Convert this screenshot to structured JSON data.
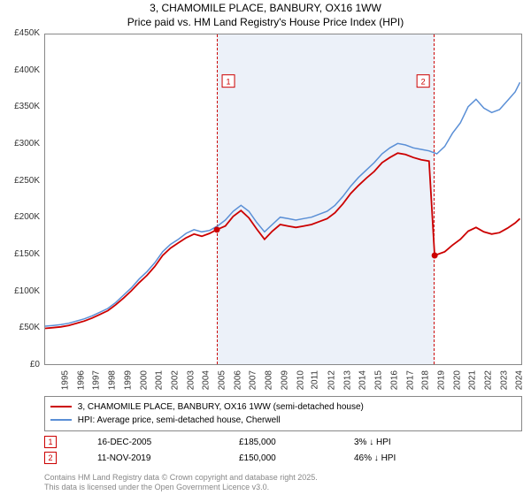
{
  "title_line1": "3, CHAMOMILE PLACE, BANBURY, OX16 1WW",
  "title_line2": "Price paid vs. HM Land Registry's House Price Index (HPI)",
  "chart": {
    "type": "line",
    "background_color": "#ffffff",
    "border_color": "#888888",
    "ylim": [
      0,
      450000
    ],
    "ytick_step": 50000,
    "yticks": [
      "£0",
      "£50K",
      "£100K",
      "£150K",
      "£200K",
      "£250K",
      "£300K",
      "£350K",
      "£400K",
      "£450K"
    ],
    "xlim": [
      1995,
      2025.5
    ],
    "xticks": [
      "1995",
      "1996",
      "1997",
      "1998",
      "1999",
      "2000",
      "2001",
      "2002",
      "2003",
      "2004",
      "2005",
      "2006",
      "2007",
      "2008",
      "2009",
      "2010",
      "2011",
      "2012",
      "2013",
      "2014",
      "2015",
      "2016",
      "2017",
      "2018",
      "2019",
      "2020",
      "2021",
      "2022",
      "2023",
      "2024",
      "2025"
    ],
    "shade_start": 2005.96,
    "shade_end": 2019.86,
    "shade_color": "rgba(180,200,230,0.25)",
    "shade_border": "#cc0000",
    "series": [
      {
        "name": "HPI: Average price, semi-detached house, Cherwell",
        "color": "#5a8fd6",
        "line_width": 1.5,
        "points": [
          [
            1995,
            54000
          ],
          [
            1995.5,
            55000
          ],
          [
            1996,
            56000
          ],
          [
            1996.5,
            58000
          ],
          [
            1997,
            61000
          ],
          [
            1997.5,
            64000
          ],
          [
            1998,
            68000
          ],
          [
            1998.5,
            73000
          ],
          [
            1999,
            78000
          ],
          [
            1999.5,
            86000
          ],
          [
            2000,
            96000
          ],
          [
            2000.5,
            106000
          ],
          [
            2001,
            118000
          ],
          [
            2001.5,
            128000
          ],
          [
            2002,
            140000
          ],
          [
            2002.5,
            155000
          ],
          [
            2003,
            165000
          ],
          [
            2003.5,
            172000
          ],
          [
            2004,
            180000
          ],
          [
            2004.5,
            185000
          ],
          [
            2005,
            182000
          ],
          [
            2005.5,
            184000
          ],
          [
            2006,
            190000
          ],
          [
            2006.5,
            198000
          ],
          [
            2007,
            210000
          ],
          [
            2007.5,
            218000
          ],
          [
            2008,
            210000
          ],
          [
            2008.5,
            195000
          ],
          [
            2009,
            182000
          ],
          [
            2009.5,
            192000
          ],
          [
            2010,
            202000
          ],
          [
            2010.5,
            200000
          ],
          [
            2011,
            198000
          ],
          [
            2011.5,
            200000
          ],
          [
            2012,
            202000
          ],
          [
            2012.5,
            206000
          ],
          [
            2013,
            210000
          ],
          [
            2013.5,
            218000
          ],
          [
            2014,
            230000
          ],
          [
            2014.5,
            244000
          ],
          [
            2015,
            256000
          ],
          [
            2015.5,
            266000
          ],
          [
            2016,
            276000
          ],
          [
            2016.5,
            288000
          ],
          [
            2017,
            296000
          ],
          [
            2017.5,
            302000
          ],
          [
            2018,
            300000
          ],
          [
            2018.5,
            296000
          ],
          [
            2019,
            294000
          ],
          [
            2019.5,
            292000
          ],
          [
            2020,
            288000
          ],
          [
            2020.5,
            298000
          ],
          [
            2021,
            316000
          ],
          [
            2021.5,
            330000
          ],
          [
            2022,
            352000
          ],
          [
            2022.5,
            362000
          ],
          [
            2023,
            350000
          ],
          [
            2023.5,
            344000
          ],
          [
            2024,
            348000
          ],
          [
            2024.5,
            360000
          ],
          [
            2025,
            372000
          ],
          [
            2025.3,
            385000
          ]
        ]
      },
      {
        "name": "3, CHAMOMILE PLACE, BANBURY, OX16 1WW (semi-detached house)",
        "color": "#cc0000",
        "line_width": 1.8,
        "points": [
          [
            1995,
            51000
          ],
          [
            1995.5,
            52000
          ],
          [
            1996,
            53000
          ],
          [
            1996.5,
            55000
          ],
          [
            1997,
            58000
          ],
          [
            1997.5,
            61000
          ],
          [
            1998,
            65000
          ],
          [
            1998.5,
            70000
          ],
          [
            1999,
            75000
          ],
          [
            1999.5,
            83000
          ],
          [
            2000,
            92000
          ],
          [
            2000.5,
            102000
          ],
          [
            2001,
            113000
          ],
          [
            2001.5,
            123000
          ],
          [
            2002,
            135000
          ],
          [
            2002.5,
            150000
          ],
          [
            2003,
            160000
          ],
          [
            2003.5,
            167000
          ],
          [
            2004,
            174000
          ],
          [
            2004.5,
            179000
          ],
          [
            2005,
            176000
          ],
          [
            2005.5,
            180000
          ],
          [
            2005.96,
            185000
          ],
          [
            2006.5,
            190000
          ],
          [
            2007,
            203000
          ],
          [
            2007.5,
            211000
          ],
          [
            2008,
            201000
          ],
          [
            2008.5,
            186000
          ],
          [
            2009,
            172000
          ],
          [
            2009.5,
            183000
          ],
          [
            2010,
            192000
          ],
          [
            2010.5,
            190000
          ],
          [
            2011,
            188000
          ],
          [
            2011.5,
            190000
          ],
          [
            2012,
            192000
          ],
          [
            2012.5,
            196000
          ],
          [
            2013,
            200000
          ],
          [
            2013.5,
            208000
          ],
          [
            2014,
            220000
          ],
          [
            2014.5,
            234000
          ],
          [
            2015,
            245000
          ],
          [
            2015.5,
            255000
          ],
          [
            2016,
            264000
          ],
          [
            2016.5,
            276000
          ],
          [
            2017,
            283000
          ],
          [
            2017.5,
            289000
          ],
          [
            2018,
            287000
          ],
          [
            2018.5,
            283000
          ],
          [
            2019,
            280000
          ],
          [
            2019.5,
            278000
          ],
          [
            2019.86,
            150000
          ],
          [
            2020.5,
            155000
          ],
          [
            2021,
            164000
          ],
          [
            2021.5,
            172000
          ],
          [
            2022,
            183000
          ],
          [
            2022.5,
            188000
          ],
          [
            2023,
            182000
          ],
          [
            2023.5,
            179000
          ],
          [
            2024,
            181000
          ],
          [
            2024.5,
            187000
          ],
          [
            2025,
            194000
          ],
          [
            2025.3,
            200000
          ]
        ],
        "markers": [
          {
            "x": 2005.96,
            "y": 185000,
            "label": "1",
            "label_y": 400000
          },
          {
            "x": 2019.86,
            "y": 150000,
            "label": "2",
            "label_y": 400000
          }
        ]
      }
    ]
  },
  "legend": [
    {
      "color": "#cc0000",
      "label": "3, CHAMOMILE PLACE, BANBURY, OX16 1WW (semi-detached house)"
    },
    {
      "color": "#5a8fd6",
      "label": "HPI: Average price, semi-detached house, Cherwell"
    }
  ],
  "events": [
    {
      "num": "1",
      "color": "#cc0000",
      "date": "16-DEC-2005",
      "price": "£185,000",
      "diff": "3% ↓ HPI"
    },
    {
      "num": "2",
      "color": "#cc0000",
      "date": "11-NOV-2019",
      "price": "£150,000",
      "diff": "46% ↓ HPI"
    }
  ],
  "copyright_line1": "Contains HM Land Registry data © Crown copyright and database right 2025.",
  "copyright_line2": "This data is licensed under the Open Government Licence v3.0."
}
